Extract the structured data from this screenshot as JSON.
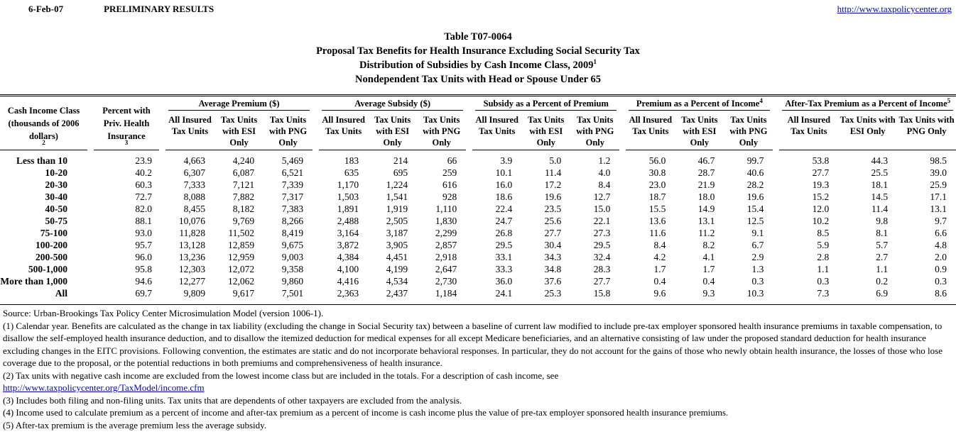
{
  "colors": {
    "link_blue": "#0000EE",
    "text": "#000000",
    "background": "#FFFFFF"
  },
  "topbar": {
    "date": "6-Feb-07",
    "status": "PRELIMINARY RESULTS",
    "site_link": "http://www.taxpolicycenter.org"
  },
  "title": {
    "line1": "Table T07-0064",
    "line2": "Proposal Tax Benefits for Health Insurance Excluding Social Security Tax",
    "line3": "Distribution of Subsidies by Cash Income Class, 2009",
    "line3_sup": "1",
    "line4": "Nondependent Tax Units with Head or Spouse Under 65"
  },
  "table": {
    "col1_header": "Cash Income Class (thousands of 2006 dollars)",
    "col1_sup": "2",
    "col2_header": "Percent with Priv. Health Insurance",
    "col2_sup": "3",
    "groups": [
      {
        "title": "Average Premium ($)",
        "sup": ""
      },
      {
        "title": "Average Subsidy ($)",
        "sup": ""
      },
      {
        "title": "Subsidy as a Percent of Premium",
        "sup": ""
      },
      {
        "title": "Premium as a Percent of Income",
        "sup": "4"
      },
      {
        "title": "After-Tax Premium as a Percent of Income",
        "sup": "5"
      }
    ],
    "subcolumns": [
      "All Insured Tax Units",
      "Tax Units with ESI Only",
      "Tax Units with PNG Only"
    ],
    "rows": [
      {
        "label": "Less than 10",
        "pct": "23.9",
        "values": [
          "4,663",
          "4,240",
          "5,469",
          "183",
          "214",
          "66",
          "3.9",
          "5.0",
          "1.2",
          "56.0",
          "46.7",
          "99.7",
          "53.8",
          "44.3",
          "98.5"
        ]
      },
      {
        "label": "10-20",
        "pct": "40.2",
        "values": [
          "6,307",
          "6,087",
          "6,521",
          "635",
          "695",
          "259",
          "10.1",
          "11.4",
          "4.0",
          "30.8",
          "28.7",
          "40.6",
          "27.7",
          "25.5",
          "39.0"
        ]
      },
      {
        "label": "20-30",
        "pct": "60.3",
        "values": [
          "7,333",
          "7,121",
          "7,339",
          "1,170",
          "1,224",
          "616",
          "16.0",
          "17.2",
          "8.4",
          "23.0",
          "21.9",
          "28.2",
          "19.3",
          "18.1",
          "25.9"
        ]
      },
      {
        "label": "30-40",
        "pct": "72.7",
        "values": [
          "8,088",
          "7,882",
          "7,317",
          "1,503",
          "1,541",
          "928",
          "18.6",
          "19.6",
          "12.7",
          "18.7",
          "18.0",
          "19.6",
          "15.2",
          "14.5",
          "17.1"
        ]
      },
      {
        "label": "40-50",
        "pct": "82.0",
        "values": [
          "8,455",
          "8,182",
          "7,383",
          "1,891",
          "1,919",
          "1,110",
          "22.4",
          "23.5",
          "15.0",
          "15.5",
          "14.9",
          "15.4",
          "12.0",
          "11.4",
          "13.1"
        ]
      },
      {
        "label": "50-75",
        "pct": "88.1",
        "values": [
          "10,076",
          "9,769",
          "8,266",
          "2,488",
          "2,505",
          "1,830",
          "24.7",
          "25.6",
          "22.1",
          "13.6",
          "13.1",
          "12.5",
          "10.2",
          "9.8",
          "9.7"
        ]
      },
      {
        "label": "75-100",
        "pct": "93.0",
        "values": [
          "11,828",
          "11,502",
          "8,419",
          "3,164",
          "3,187",
          "2,299",
          "26.8",
          "27.7",
          "27.3",
          "11.6",
          "11.2",
          "9.1",
          "8.5",
          "8.1",
          "6.6"
        ]
      },
      {
        "label": "100-200",
        "pct": "95.7",
        "values": [
          "13,128",
          "12,859",
          "9,675",
          "3,872",
          "3,905",
          "2,857",
          "29.5",
          "30.4",
          "29.5",
          "8.4",
          "8.2",
          "6.7",
          "5.9",
          "5.7",
          "4.8"
        ]
      },
      {
        "label": "200-500",
        "pct": "96.0",
        "values": [
          "13,236",
          "12,959",
          "9,003",
          "4,384",
          "4,451",
          "2,918",
          "33.1",
          "34.3",
          "32.4",
          "4.2",
          "4.1",
          "2.9",
          "2.8",
          "2.7",
          "2.0"
        ]
      },
      {
        "label": "500-1,000",
        "pct": "95.8",
        "values": [
          "12,303",
          "12,072",
          "9,358",
          "4,100",
          "4,199",
          "2,647",
          "33.3",
          "34.8",
          "28.3",
          "1.7",
          "1.7",
          "1.3",
          "1.1",
          "1.1",
          "0.9"
        ]
      },
      {
        "label": "More than 1,000",
        "pct": "94.6",
        "values": [
          "12,277",
          "12,062",
          "9,860",
          "4,416",
          "4,534",
          "2,730",
          "36.0",
          "37.6",
          "27.7",
          "0.4",
          "0.4",
          "0.3",
          "0.3",
          "0.2",
          "0.3"
        ]
      },
      {
        "label": "All",
        "pct": "69.7",
        "values": [
          "9,809",
          "9,617",
          "7,501",
          "2,363",
          "2,437",
          "1,184",
          "24.1",
          "25.3",
          "15.8",
          "9.6",
          "9.3",
          "10.3",
          "7.3",
          "6.9",
          "8.6"
        ]
      }
    ]
  },
  "footnotes": {
    "source": "Source: Urban-Brookings Tax Policy Center Microsimulation Model (version 1006-1).",
    "fn1": "(1) Calendar year. Benefits are calculated as the change in tax liability (excluding the change in Social Security tax) between a baseline of current law modified to include pre-tax employer sponsored health insurance premiums in taxable compensation, to disallow the self-employed health insurance deduction, and to disallow the itemized deduction for medical expenses for all except Medicare beneficiaries, and an alternative consisting of law under the proposed standard deduction for health insurance excluding changes in the EITC provisions. Following convention, the estimates are static and do not incorporate behavioral responses. In particular, they do not account for the gains of those who newly obtain health insurance, the losses of those who lose coverage due to the proposal, or the potential reductions in both premiums and comprehensiveness of health insurance.",
    "fn2": "(2) Tax units with negative cash income are excluded from the lowest income class but are included in the totals. For a description of cash income, see",
    "fn2_link": "http://www.taxpolicycenter.org/TaxModel/income.cfm",
    "fn3": "(3) Includes both filing and non-filing units.  Tax units that are dependents of other taxpayers are excluded from the analysis.",
    "fn4": "(4) Income used to calculate premium as a percent of income and after-tax premium as a percent of income is cash income plus the value of pre-tax employer sponsored health insurance premiums.",
    "fn5": "(5) After-tax premium is the average premium less the average subsidy."
  }
}
